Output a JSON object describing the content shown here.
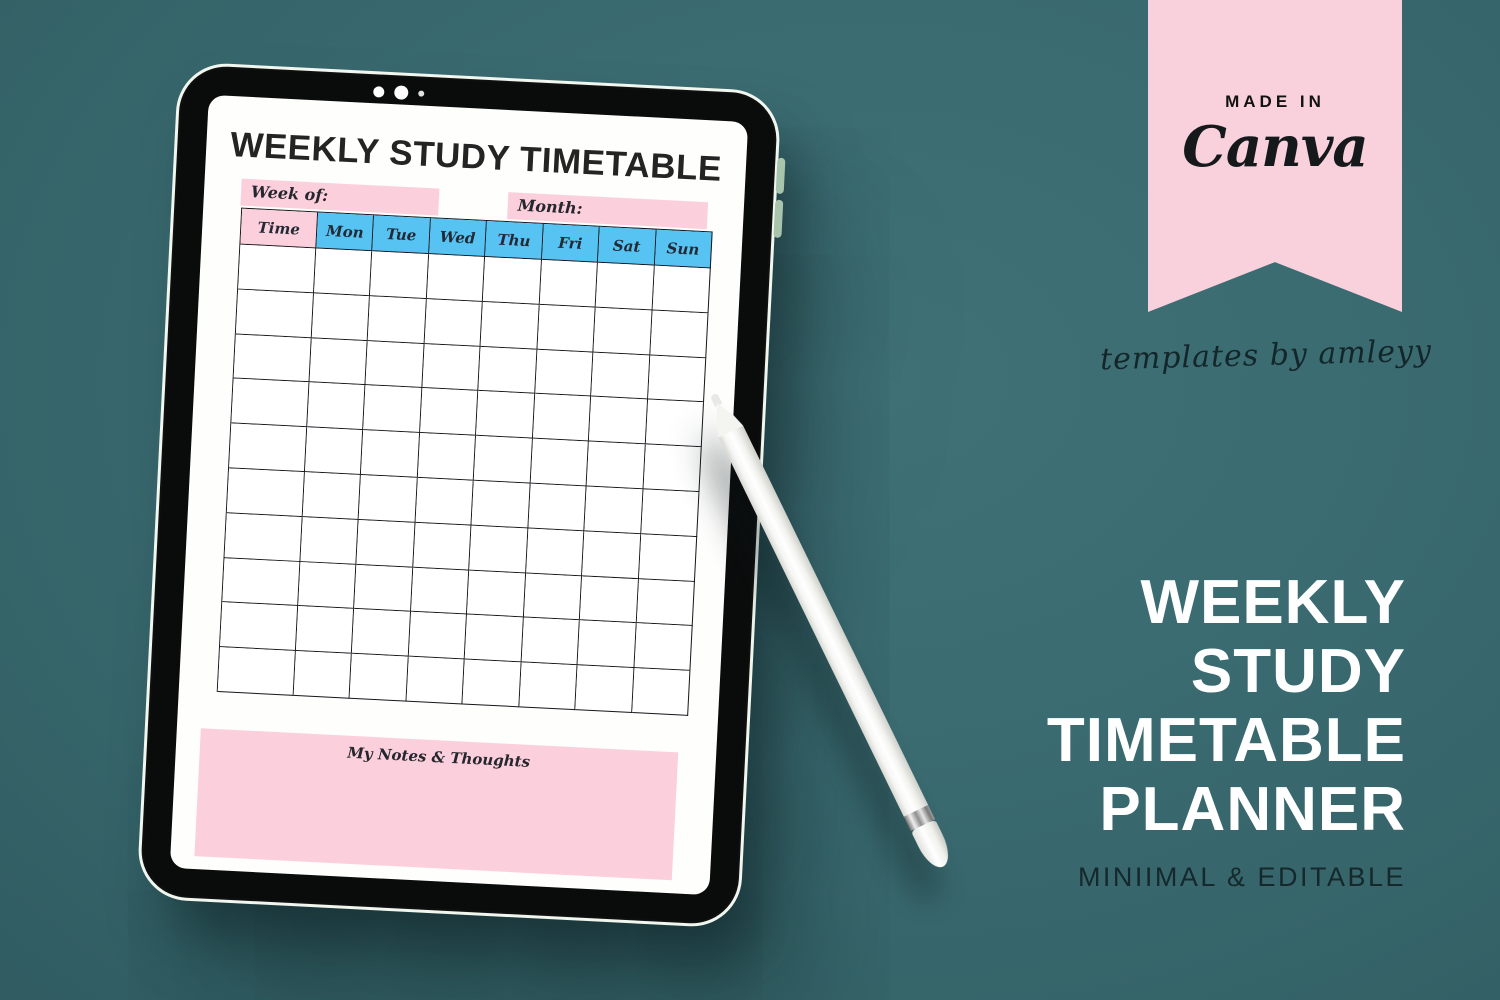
{
  "colors": {
    "background_teal": "#35646a",
    "pink": "#fbd0dc",
    "blue": "#56c3f2",
    "banner_pink": "#f8d1dc",
    "promo_white": "#ffffff",
    "subtitle_dark": "#15282c",
    "bezel_black": "#0a0b0b"
  },
  "tablet": {
    "planner": {
      "title": "WEEKLY STUDY TIMETABLE",
      "week_of_label": "Week of:",
      "month_label": "Month:",
      "table": {
        "header": [
          "Time",
          "Mon",
          "Tue",
          "Wed",
          "Thu",
          "Fri",
          "Sat",
          "Sun"
        ],
        "body_rows": 10,
        "body_cols": 8
      },
      "notes_label": "My Notes & Thoughts"
    }
  },
  "badge": {
    "line1": "MADE IN",
    "line2": "Canva"
  },
  "credit": "templates by amleyy",
  "promo": {
    "lines": [
      "WEEKLY",
      "STUDY",
      "TIMETABLE",
      "PLANNER"
    ],
    "subtitle": "MINIIMAL & EDITABLE"
  }
}
